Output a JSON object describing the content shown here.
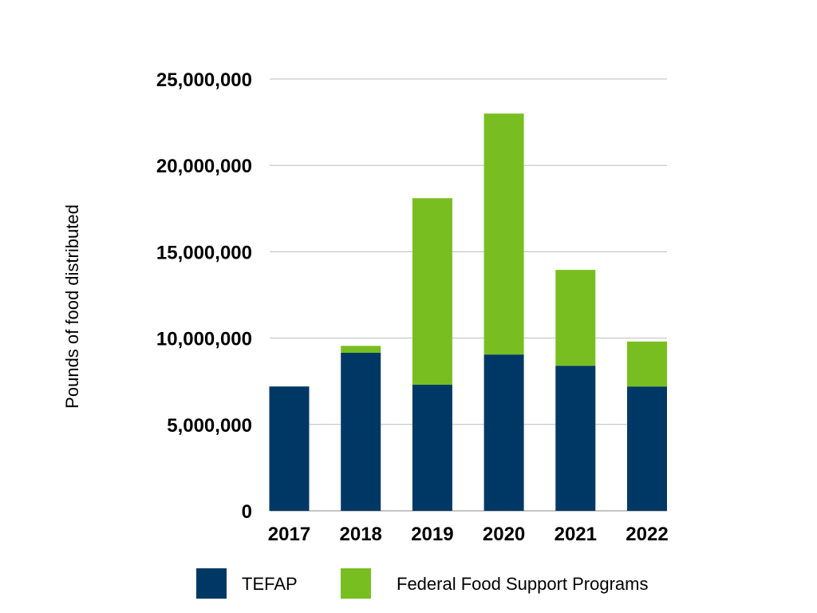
{
  "chart_data": {
    "type": "bar",
    "stacked": true,
    "title": "",
    "xlabel": "",
    "ylabel": "Pounds of food distributed",
    "ylim": [
      0,
      25000000
    ],
    "yticks": [
      0,
      5000000,
      10000000,
      15000000,
      20000000,
      25000000
    ],
    "ytick_labels": [
      "0",
      "5,000,000",
      "10,000,000",
      "15,000,000",
      "20,000,000",
      "25,000,000"
    ],
    "grid": true,
    "legend_position": "bottom",
    "categories": [
      "2017",
      "2018",
      "2019",
      "2020",
      "2021",
      "2022"
    ],
    "series": [
      {
        "name": "TEFAP",
        "color": "#003865",
        "values": [
          7200000,
          9150000,
          7300000,
          9050000,
          8400000,
          7200000
        ]
      },
      {
        "name": "Federal Food Support Programs",
        "color": "#78be20",
        "values": [
          0,
          400000,
          10800000,
          13950000,
          5550000,
          2600000
        ]
      }
    ]
  }
}
